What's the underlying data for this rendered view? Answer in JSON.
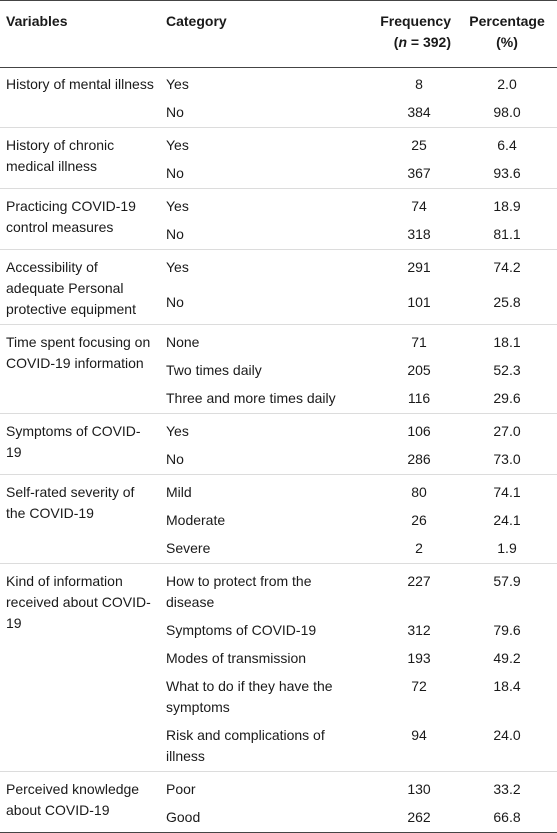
{
  "header": {
    "variables": "Variables",
    "category": "Category",
    "frequency_line1": "Frequency",
    "frequency_n_open": "(",
    "frequency_n_italic": "n",
    "frequency_n_rest": " = 392)",
    "percentage_line1": "Percentage",
    "percentage_line2": "(%)"
  },
  "groups": [
    {
      "variable": "History of mental illness",
      "rows": [
        {
          "category": "Yes",
          "frequency": "8",
          "percentage": "2.0"
        },
        {
          "category": "No",
          "frequency": "384",
          "percentage": "98.0"
        }
      ]
    },
    {
      "variable": "History of chronic medical illness",
      "rows": [
        {
          "category": "Yes",
          "frequency": "25",
          "percentage": "6.4"
        },
        {
          "category": "No",
          "frequency": "367",
          "percentage": "93.6"
        }
      ]
    },
    {
      "variable": "Practicing COVID-19 control measures",
      "rows": [
        {
          "category": "Yes",
          "frequency": "74",
          "percentage": "18.9"
        },
        {
          "category": "No",
          "frequency": "318",
          "percentage": "81.1"
        }
      ]
    },
    {
      "variable": "Accessibility of adequate Personal protective equipment",
      "rows": [
        {
          "category": "Yes",
          "frequency": "291",
          "percentage": "74.2"
        },
        {
          "category": "No",
          "frequency": "101",
          "percentage": "25.8"
        }
      ]
    },
    {
      "variable": "Time spent focusing on COVID-19 information",
      "rows": [
        {
          "category": "None",
          "frequency": "71",
          "percentage": "18.1"
        },
        {
          "category": "Two times daily",
          "frequency": "205",
          "percentage": "52.3"
        },
        {
          "category": "Three and more times daily",
          "frequency": "116",
          "percentage": "29.6"
        }
      ]
    },
    {
      "variable": "Symptoms of COVID-19",
      "rows": [
        {
          "category": "Yes",
          "frequency": "106",
          "percentage": "27.0"
        },
        {
          "category": "No",
          "frequency": "286",
          "percentage": "73.0"
        }
      ]
    },
    {
      "variable": "Self-rated severity of the COVID-19",
      "rows": [
        {
          "category": "Mild",
          "frequency": "80",
          "percentage": "74.1"
        },
        {
          "category": "Moderate",
          "frequency": "26",
          "percentage": "24.1"
        },
        {
          "category": "Severe",
          "frequency": "2",
          "percentage": "1.9"
        }
      ]
    },
    {
      "variable": "Kind of information received about COVID-19",
      "rows": [
        {
          "category": "How to protect from the disease",
          "frequency": "227",
          "percentage": "57.9"
        },
        {
          "category": "Symptoms of COVID-19",
          "frequency": "312",
          "percentage": "79.6"
        },
        {
          "category": "Modes of transmission",
          "frequency": "193",
          "percentage": "49.2"
        },
        {
          "category": "What to do if they have the symptoms",
          "frequency": "72",
          "percentage": "18.4"
        },
        {
          "category": "Risk and complications of illness",
          "frequency": "94",
          "percentage": "24.0"
        }
      ]
    },
    {
      "variable": "Perceived knowledge about COVID-19",
      "rows": [
        {
          "category": "Poor",
          "frequency": "130",
          "percentage": "33.2"
        },
        {
          "category": "Good",
          "frequency": "262",
          "percentage": "66.8"
        }
      ]
    }
  ]
}
